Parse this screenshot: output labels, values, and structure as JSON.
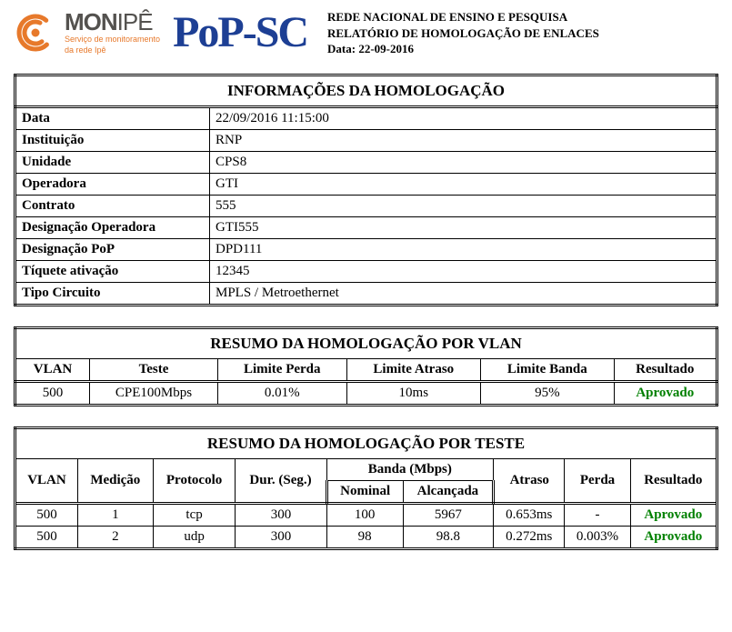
{
  "header": {
    "brand_mon": "MON",
    "brand_ipe": "IPÊ",
    "subtitle_line1": "Serviço de monitoramento",
    "subtitle_line2": "da rede Ipê",
    "popsc": "PoP-SC",
    "line1": "REDE NACIONAL DE ENSINO E PESQUISA",
    "line2": "RELATÓRIO DE HOMOLOGAÇÃO DE ENLACES",
    "line3": "Data: 22-09-2016",
    "colors": {
      "orange": "#e7792b",
      "blue": "#1d3f94",
      "grey": "#54524f"
    }
  },
  "info": {
    "title": "INFORMAÇÕES DA HOMOLOGAÇÃO",
    "rows": [
      {
        "label": "Data",
        "value": "22/09/2016 11:15:00"
      },
      {
        "label": "Instituição",
        "value": "RNP"
      },
      {
        "label": "Unidade",
        "value": "CPS8"
      },
      {
        "label": "Operadora",
        "value": "GTI"
      },
      {
        "label": "Contrato",
        "value": "555"
      },
      {
        "label": "Designação Operadora",
        "value": "GTI555"
      },
      {
        "label": "Designação PoP",
        "value": "DPD111"
      },
      {
        "label": "Tíquete ativação",
        "value": "12345"
      },
      {
        "label": "Tipo Circuito",
        "value": "MPLS / Metroethernet"
      }
    ]
  },
  "vlan": {
    "title": "RESUMO DA HOMOLOGAÇÃO POR VLAN",
    "columns": [
      "VLAN",
      "Teste",
      "Limite Perda",
      "Limite Atraso",
      "Limite Banda",
      "Resultado"
    ],
    "rows": [
      {
        "c0": "500",
        "c1": "CPE100Mbps",
        "c2": "0.01%",
        "c3": "10ms",
        "c4": "95%",
        "c5": "Aprovado",
        "approved": true
      }
    ]
  },
  "teste": {
    "title": "RESUMO DA HOMOLOGAÇÃO POR TESTE",
    "group_banda": "Banda (Mbps)",
    "columns": [
      "VLAN",
      "Medição",
      "Protocolo",
      "Dur. (Seg.)",
      "Nominal",
      "Alcançada",
      "Atraso",
      "Perda",
      "Resultado"
    ],
    "rows": [
      {
        "c0": "500",
        "c1": "1",
        "c2": "tcp",
        "c3": "300",
        "c4": "100",
        "c5": "5967",
        "c6": "0.653ms",
        "c7": "-",
        "c8": "Aprovado",
        "approved": true
      },
      {
        "c0": "500",
        "c1": "2",
        "c2": "udp",
        "c3": "300",
        "c4": "98",
        "c5": "98.8",
        "c6": "0.272ms",
        "c7": "0.003%",
        "c8": "Aprovado",
        "approved": true
      }
    ]
  }
}
